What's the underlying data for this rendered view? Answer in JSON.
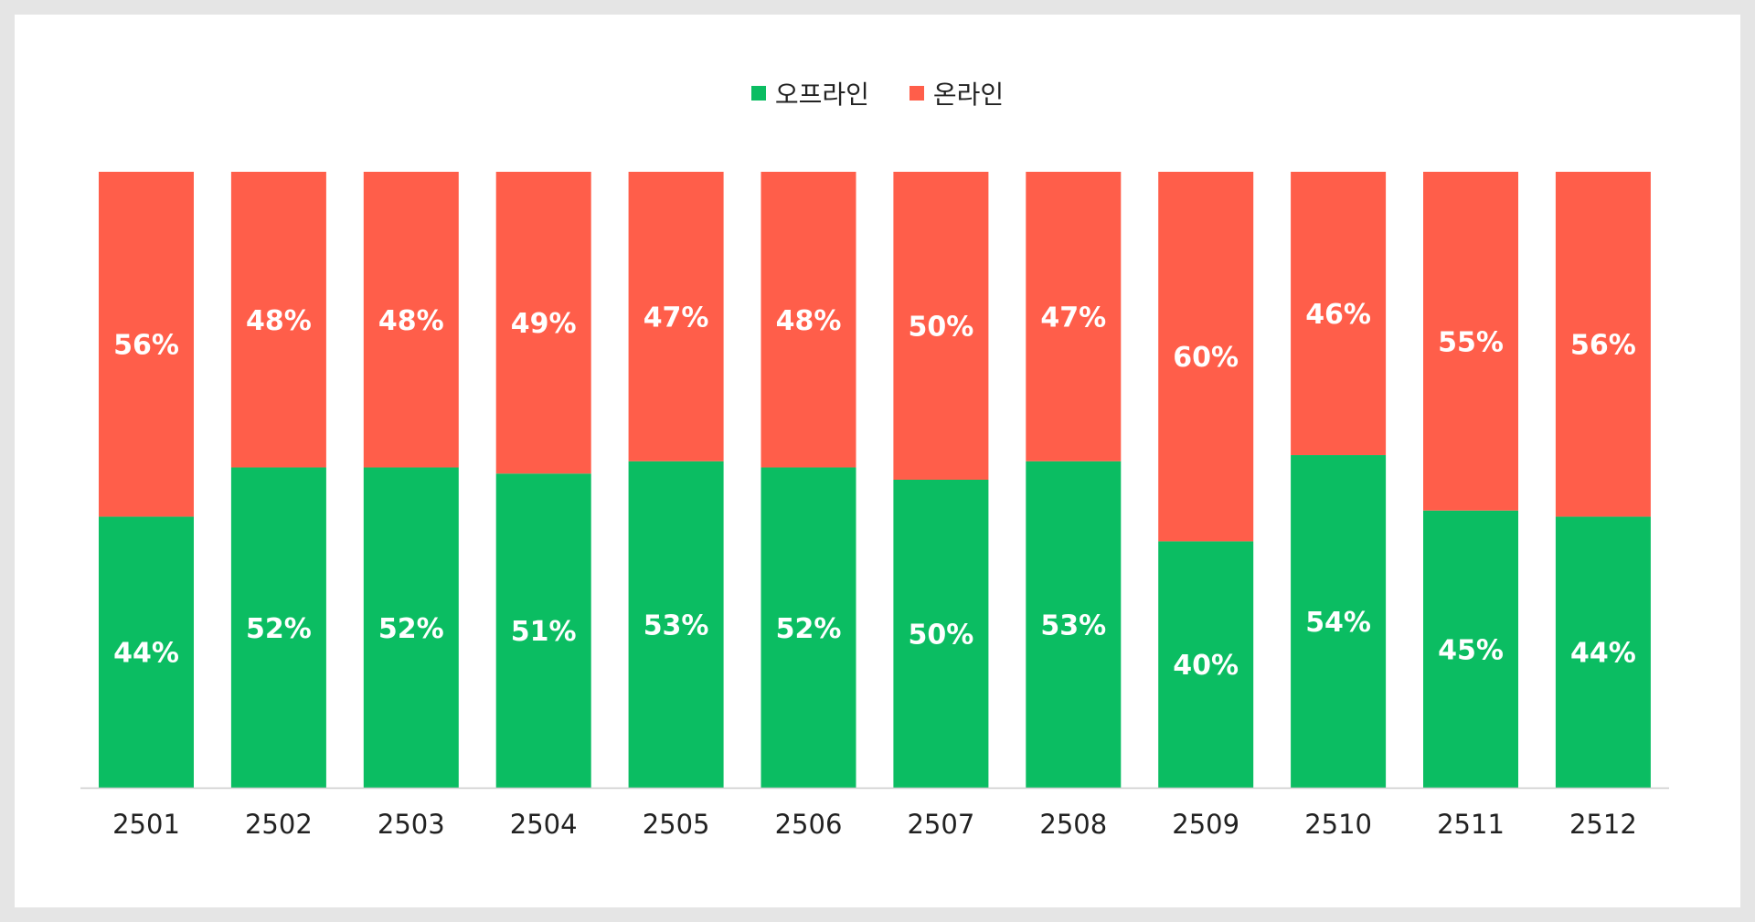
{
  "chart_data": {
    "type": "bar",
    "stacked": true,
    "normalized": true,
    "categories": [
      "2501",
      "2502",
      "2503",
      "2504",
      "2505",
      "2506",
      "2507",
      "2508",
      "2509",
      "2510",
      "2511",
      "2512"
    ],
    "series": [
      {
        "name": "오프라인",
        "color": "#0bbd62",
        "values": [
          44,
          52,
          52,
          51,
          53,
          52,
          50,
          53,
          40,
          54,
          45,
          44
        ],
        "labels": [
          "44%",
          "52%",
          "52%",
          "51%",
          "53%",
          "52%",
          "50%",
          "53%",
          "40%",
          "54%",
          "45%",
          "44%"
        ]
      },
      {
        "name": "온라인",
        "color": "#ff5e4a",
        "values": [
          56,
          48,
          48,
          49,
          47,
          48,
          50,
          47,
          60,
          46,
          55,
          56
        ],
        "labels": [
          "56%",
          "48%",
          "48%",
          "49%",
          "47%",
          "48%",
          "50%",
          "47%",
          "60%",
          "46%",
          "55%",
          "56%"
        ]
      }
    ],
    "ylim": [
      0,
      100
    ],
    "legend_position": "top",
    "grid": false
  }
}
